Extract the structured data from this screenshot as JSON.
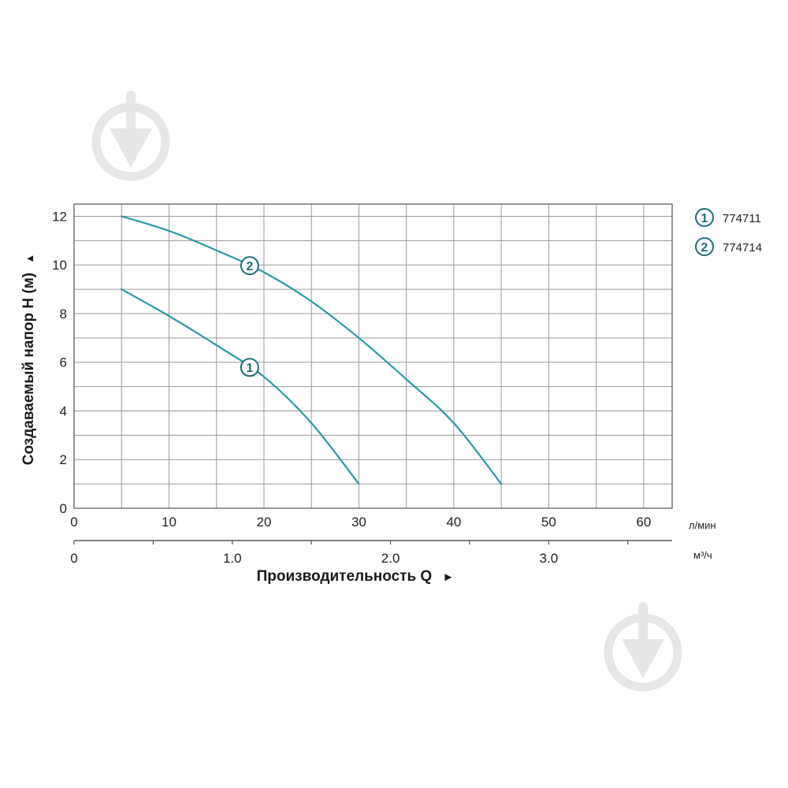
{
  "chart_data": {
    "type": "line",
    "ylabel": "Создаваемый напор H (м)",
    "ylabel_arrow": "▲",
    "xlabel": "Производительность Q",
    "xlabel_arrow": "►",
    "ylim": [
      0,
      12.5
    ],
    "xlim": [
      0,
      63
    ],
    "y_ticks": [
      "0",
      "2",
      "4",
      "6",
      "8",
      "10",
      "12"
    ],
    "x_ticks": [
      "0",
      "10",
      "20",
      "30",
      "40",
      "50",
      "60"
    ],
    "x_unit": "л/мин",
    "x2_ticks": [
      "0",
      "1.0",
      "2.0",
      "3.0"
    ],
    "x2_unit": "м³/ч",
    "grid": true,
    "legend_position": "right",
    "series": [
      {
        "name": "774711",
        "marker": "1",
        "color": "#2a9aa5",
        "x": [
          5,
          10,
          15,
          20,
          25,
          30
        ],
        "y": [
          9.0,
          7.9,
          6.7,
          5.4,
          3.5,
          1.0
        ]
      },
      {
        "name": "774714",
        "marker": "2",
        "color": "#2a9aa5",
        "x": [
          5,
          10,
          15,
          20,
          25,
          30,
          35,
          40,
          45
        ],
        "y": [
          12.0,
          11.4,
          10.6,
          9.7,
          8.5,
          7.0,
          5.3,
          3.5,
          1.0
        ]
      }
    ]
  }
}
